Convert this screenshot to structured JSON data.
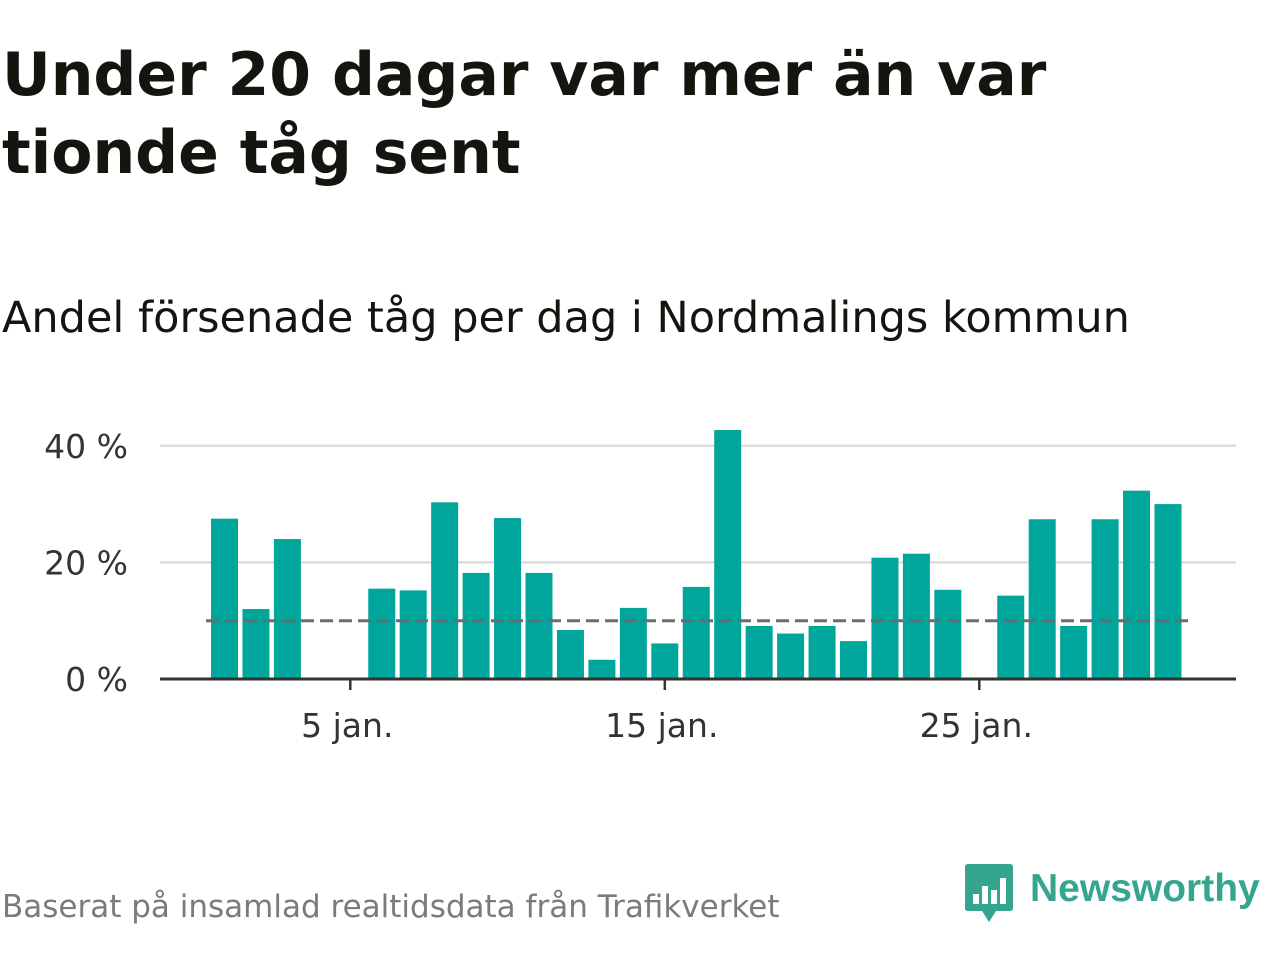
{
  "title": "Under 20 dagar var mer än var tionde tåg sent",
  "subtitle": "Andel försenade tåg per dag i Nordmalings kommun",
  "source": "Baserat på insamlad realtidsdata från Trafikverket",
  "brand": {
    "name": "Newsworthy",
    "icon": "newsworthy-logo-icon",
    "color": "#36a590"
  },
  "colors": {
    "bar": "#00a59b",
    "grid": "#dddddd",
    "axis": "#333333",
    "reference": "#6b6b73"
  },
  "chart_data": {
    "type": "bar",
    "categories": [
      "1 jan.",
      "2 jan.",
      "3 jan.",
      "4 jan.",
      "5 jan.",
      "6 jan.",
      "7 jan.",
      "8 jan.",
      "9 jan.",
      "10 jan.",
      "11 jan.",
      "12 jan.",
      "13 jan.",
      "14 jan.",
      "15 jan.",
      "16 jan.",
      "17 jan.",
      "18 jan.",
      "19 jan.",
      "20 jan.",
      "21 jan.",
      "22 jan.",
      "23 jan.",
      "24 jan.",
      "25 jan.",
      "26 jan.",
      "27 jan.",
      "28 jan.",
      "29 jan.",
      "30 jan.",
      "31 jan."
    ],
    "values": [
      27.5,
      12,
      24,
      0,
      0,
      15.5,
      15.2,
      30.3,
      18.2,
      27.6,
      18.2,
      8.4,
      3.3,
      12.2,
      6.1,
      15.8,
      42.7,
      9.1,
      7.8,
      9.1,
      6.5,
      20.8,
      21.5,
      15.3,
      0,
      14.3,
      27.4,
      9.1,
      27.4,
      32.3,
      30
    ],
    "reference_line": 10,
    "ylim": [
      0,
      42
    ],
    "yticks": [
      {
        "value": 0,
        "label": "0 %"
      },
      {
        "value": 20,
        "label": "20 %"
      },
      {
        "value": 40,
        "label": "40 %"
      }
    ],
    "xticks": [
      {
        "day": 5,
        "label": "5 jan."
      },
      {
        "day": 15,
        "label": "15 jan."
      },
      {
        "day": 25,
        "label": "25 jan."
      }
    ],
    "grid": true
  }
}
